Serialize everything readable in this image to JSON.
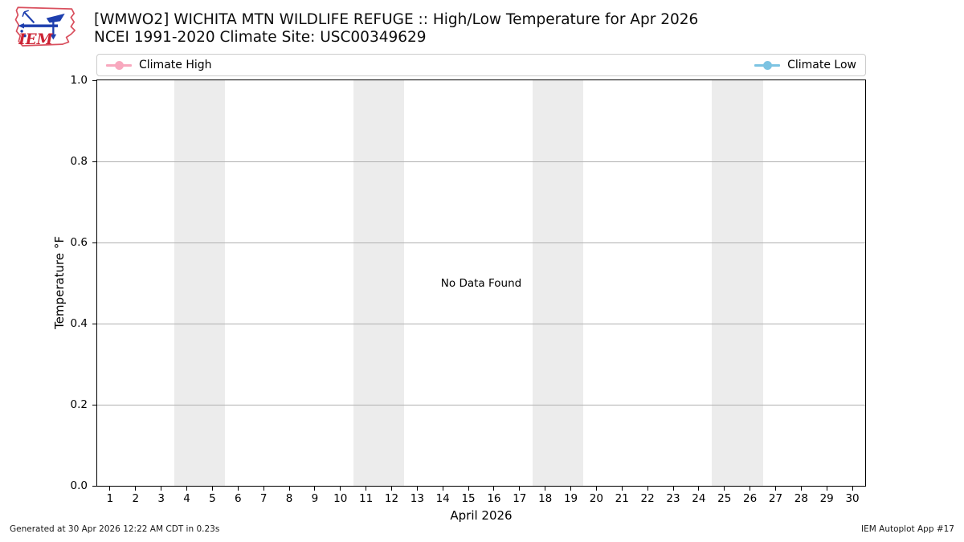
{
  "header": {
    "title": "[WMWO2] WICHITA MTN WILDLIFE REFUGE :: High/Low Temperature for Apr 2026",
    "subtitle": "NCEI 1991-2020 Climate Site: USC00349629",
    "logo_text": "IEM"
  },
  "chart_data": {
    "type": "line",
    "title": "[WMWO2] WICHITA MTN WILDLIFE REFUGE :: High/Low Temperature for Apr 2026",
    "subtitle": "NCEI 1991-2020 Climate Site: USC00349629",
    "xlabel": "April 2026",
    "ylabel": "Temperature °F",
    "xlim": [
      0.5,
      30.5
    ],
    "ylim": [
      0.0,
      1.0
    ],
    "x_ticks": [
      1,
      2,
      3,
      4,
      5,
      6,
      7,
      8,
      9,
      10,
      11,
      12,
      13,
      14,
      15,
      16,
      17,
      18,
      19,
      20,
      21,
      22,
      23,
      24,
      25,
      26,
      27,
      28,
      29,
      30
    ],
    "y_tick_values": [
      0.0,
      0.2,
      0.4,
      0.6,
      0.8,
      1.0
    ],
    "y_tick_labels": [
      "0.0",
      "0.2",
      "0.4",
      "0.6",
      "0.8",
      "1.0"
    ],
    "grid": true,
    "grid_color": "#b0b0b0",
    "weekend_bands": [
      [
        3.5,
        5.5
      ],
      [
        10.5,
        12.5
      ],
      [
        17.5,
        19.5
      ],
      [
        24.5,
        26.5
      ]
    ],
    "band_color": "#ececec",
    "legend_position": "top",
    "no_data_message": "No Data Found",
    "series": [
      {
        "name": "Climate High",
        "color": "#f8a8be",
        "marker": "circle",
        "values": []
      },
      {
        "name": "Climate Low",
        "color": "#7cc3e2",
        "marker": "circle",
        "values": []
      }
    ]
  },
  "footer": {
    "generated": "Generated at 30 Apr 2026 12:22 AM CDT in 0.23s",
    "app": "IEM Autoplot App #17"
  }
}
